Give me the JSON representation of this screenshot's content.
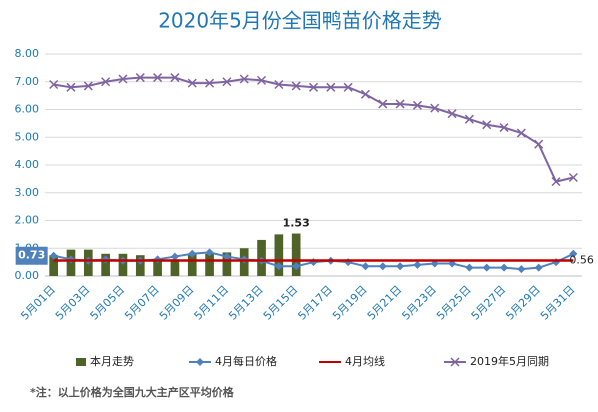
{
  "chart_data": {
    "type": "combo",
    "title": "2020年5月份全国鸭苗价格走势",
    "footnote": "*注：以上价格为全国九大主产区平均价格",
    "categories": [
      "5月01日",
      null,
      "5月03日",
      null,
      "5月05日",
      null,
      "5月07日",
      null,
      "5月09日",
      null,
      "5月11日",
      null,
      "5月13日",
      null,
      "5月15日",
      null,
      "5月17日",
      null,
      "5月19日",
      null,
      "5月21日",
      null,
      "5月23日",
      null,
      "5月25日",
      null,
      "5月27日",
      null,
      "5月29日",
      null,
      "5月31日"
    ],
    "ylim": [
      0,
      8
    ],
    "yticks": [
      {
        "value": 0,
        "label": "0.00"
      },
      {
        "value": 1,
        "label": "1.00"
      },
      {
        "value": 2,
        "label": "2.00"
      },
      {
        "value": 3,
        "label": "3.00"
      },
      {
        "value": 4,
        "label": "4.00"
      },
      {
        "value": 5,
        "label": "5.00"
      },
      {
        "value": 6,
        "label": "6.00"
      },
      {
        "value": 7,
        "label": "7.00"
      },
      {
        "value": 8,
        "label": "8.00"
      }
    ],
    "grid": true,
    "legend": "bottom",
    "series": [
      {
        "name": "本月走势",
        "type": "bar",
        "color": "#4f6228",
        "values": [
          0.75,
          0.95,
          0.95,
          0.8,
          0.8,
          0.75,
          0.6,
          0.6,
          0.8,
          0.8,
          0.85,
          1.0,
          1.3,
          1.5,
          1.53,
          null,
          null,
          null,
          null,
          null,
          null,
          null,
          null,
          null,
          null,
          null,
          null,
          null,
          null,
          null,
          null
        ],
        "value_labels": [
          null,
          null,
          null,
          null,
          null,
          null,
          null,
          null,
          null,
          null,
          null,
          null,
          null,
          null,
          "1.53",
          null,
          null,
          null,
          null,
          null,
          null,
          null,
          null,
          null,
          null,
          null,
          null,
          null,
          null,
          null,
          null
        ]
      },
      {
        "name": "4月每日价格",
        "type": "line",
        "marker": "diamond",
        "color": "#4f81bd",
        "values": [
          0.73,
          0.6,
          0.55,
          0.6,
          0.55,
          0.55,
          0.6,
          0.7,
          0.8,
          0.85,
          0.7,
          0.6,
          0.55,
          0.35,
          0.35,
          0.5,
          0.55,
          0.5,
          0.35,
          0.35,
          0.35,
          0.4,
          0.45,
          0.45,
          0.3,
          0.3,
          0.3,
          0.25,
          0.3,
          0.5,
          0.8
        ],
        "value_labels": [
          "0.73",
          null,
          null,
          null,
          null,
          null,
          null,
          null,
          null,
          null,
          null,
          null,
          null,
          null,
          null,
          null,
          null,
          null,
          null,
          null,
          null,
          null,
          null,
          null,
          null,
          null,
          null,
          null,
          null,
          null,
          null
        ]
      },
      {
        "name": "4月均线",
        "type": "line",
        "marker": "none",
        "color": "#c00000",
        "values": [
          0.56,
          0.56,
          0.56,
          0.56,
          0.56,
          0.56,
          0.56,
          0.56,
          0.56,
          0.56,
          0.56,
          0.56,
          0.56,
          0.56,
          0.56,
          0.56,
          0.56,
          0.56,
          0.56,
          0.56,
          0.56,
          0.56,
          0.56,
          0.56,
          0.56,
          0.56,
          0.56,
          0.56,
          0.56,
          0.56,
          0.56
        ],
        "value_labels": [
          null,
          null,
          null,
          null,
          null,
          null,
          null,
          null,
          null,
          null,
          null,
          null,
          null,
          null,
          null,
          null,
          null,
          null,
          null,
          null,
          null,
          null,
          null,
          null,
          null,
          null,
          null,
          null,
          null,
          null,
          "0.56"
        ]
      },
      {
        "name": "2019年5月同期",
        "type": "line",
        "marker": "x",
        "color": "#8064a2",
        "values": [
          6.9,
          6.8,
          6.85,
          7.0,
          7.1,
          7.15,
          7.15,
          7.15,
          6.95,
          6.95,
          7.0,
          7.1,
          7.05,
          6.9,
          6.85,
          6.8,
          6.8,
          6.8,
          6.55,
          6.2,
          6.2,
          6.15,
          6.05,
          5.85,
          5.65,
          5.45,
          5.35,
          5.15,
          4.75,
          3.4,
          3.55
        ]
      }
    ]
  }
}
